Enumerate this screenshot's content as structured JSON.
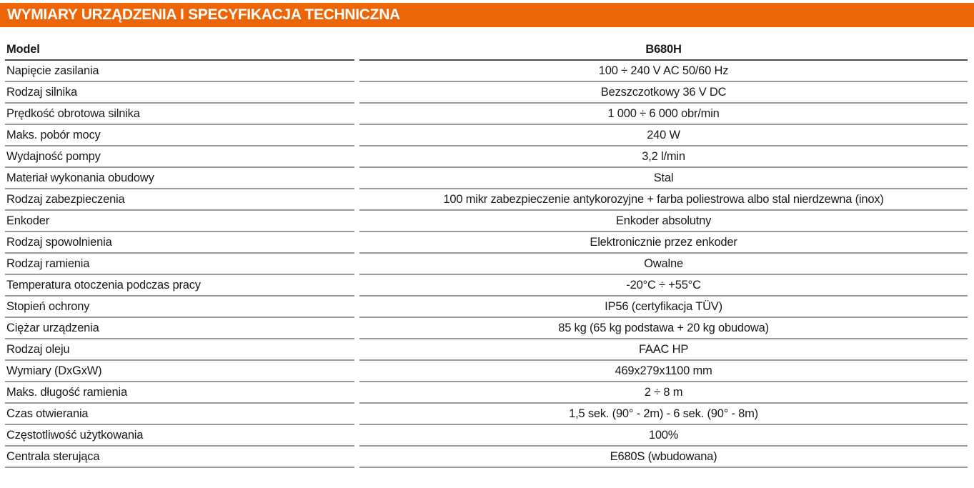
{
  "header": {
    "title": "WYMIARY URZĄDZENIA I SPECYFIKACJA TECHNICZNA",
    "background_color": "#ec6608",
    "text_color": "#ffffff"
  },
  "table": {
    "header_row": {
      "label": "Model",
      "value": "B680H"
    },
    "rows": [
      {
        "label": "Napięcie zasilania",
        "value": "100 ÷ 240 V AC 50/60 Hz"
      },
      {
        "label": "Rodzaj silnika",
        "value": "Bezszczotkowy  36 V DC"
      },
      {
        "label": "Prędkość obrotowa silnika",
        "value": "1 000 ÷ 6 000 obr/min"
      },
      {
        "label": "Maks. pobór mocy",
        "value": "240 W"
      },
      {
        "label": "Wydajność pompy",
        "value": "3,2 l/min"
      },
      {
        "label": "Materiał wykonania obudowy",
        "value": "Stal"
      },
      {
        "label": "Rodzaj zabezpieczenia",
        "value": "100 mikr zabezpieczenie antykorozyjne + farba poliestrowa albo stal nierdzewna (inox)"
      },
      {
        "label": "Enkoder",
        "value": "Enkoder absolutny"
      },
      {
        "label": "Rodzaj spowolnienia",
        "value": "Elektronicznie przez enkoder"
      },
      {
        "label": "Rodzaj ramienia",
        "value": "Owalne"
      },
      {
        "label": "Temperatura otoczenia podczas pracy",
        "value": "-20°C ÷ +55°C"
      },
      {
        "label": "Stopień ochrony",
        "value": "IP56 (certyfikacja TÜV)"
      },
      {
        "label": "Ciężar urządzenia",
        "value": "85 kg (65 kg podstawa + 20 kg obudowa)"
      },
      {
        "label": "Rodzaj oleju",
        "value": "FAAC HP"
      },
      {
        "label": "Wymiary (DxGxW)",
        "value": "469x279x1100 mm"
      },
      {
        "label": "Maks. długość ramienia",
        "value": "2 ÷ 8 m"
      },
      {
        "label": "Czas otwierania",
        "value": "1,5 sek. (90° - 2m) - 6 sek. (90° - 8m)"
      },
      {
        "label": "Częstotliwość użytkowania",
        "value": "100%"
      },
      {
        "label": "Centrala sterująca",
        "value": "E680S (wbudowana)"
      }
    ]
  }
}
